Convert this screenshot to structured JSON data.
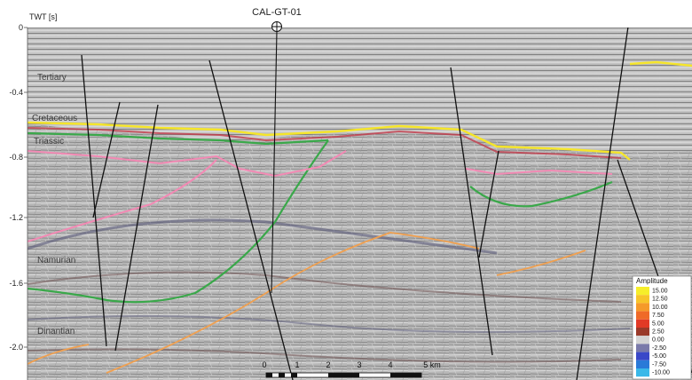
{
  "axis": {
    "title": "TWT [s]",
    "ticks": [
      "0",
      "-0.4",
      "-0.8",
      "-1.2",
      "-1.6",
      "-2.0"
    ]
  },
  "well": {
    "name": "CAL-GT-01"
  },
  "formations": [
    "Tertiary",
    "Cretaceous",
    "Triassic",
    "Namurian",
    "Dinantian"
  ],
  "scale_bar": {
    "labels": [
      "0",
      "1",
      "2",
      "3",
      "4",
      "5 km"
    ]
  },
  "legend": {
    "title": "Amplitude",
    "entries": [
      {
        "label": "15.00",
        "color": "#f6ee2a"
      },
      {
        "label": "12.50",
        "color": "#f7c52a"
      },
      {
        "label": "10.00",
        "color": "#f59a2a"
      },
      {
        "label": "7.50",
        "color": "#ef6a28"
      },
      {
        "label": "5.00",
        "color": "#e23a26"
      },
      {
        "label": "2.50",
        "color": "#9a3a2a"
      },
      {
        "label": "0.00",
        "color": "#d4d4d4"
      },
      {
        "label": "-2.50",
        "color": "#7a7aaa"
      },
      {
        "label": "-5.00",
        "color": "#3a48c8"
      },
      {
        "label": "-7.50",
        "color": "#2a7ad8"
      },
      {
        "label": "-10.00",
        "color": "#3ab8e8"
      }
    ]
  },
  "horizon_colors": {
    "tertiary_base": "#f5e52a",
    "cretaceous_base": "#3aa84a",
    "triassic_base": "#f28ab4",
    "carboniferous": "#f0a050"
  }
}
